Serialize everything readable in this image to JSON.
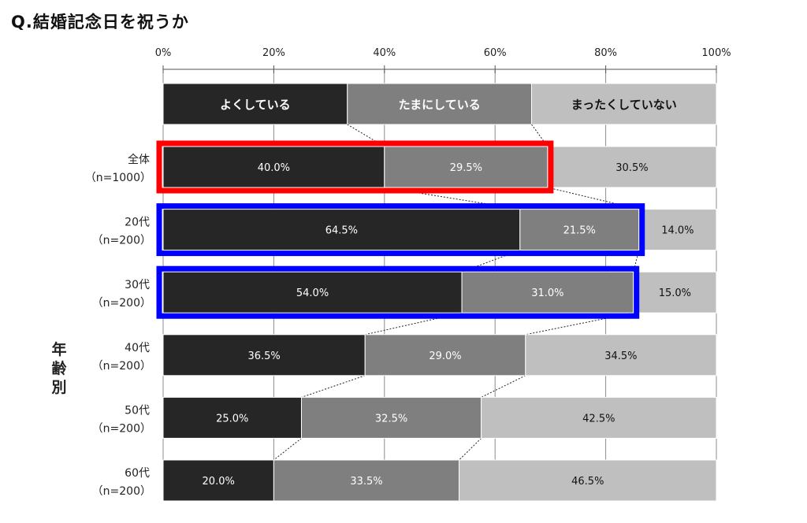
{
  "title": "Q.結婚記念日を祝うか",
  "chart_data": {
    "type": "bar",
    "orientation": "horizontal",
    "stacked": "percent",
    "x_ticks": [
      "0%",
      "20%",
      "40%",
      "60%",
      "80%",
      "100%"
    ],
    "xlim": [
      0,
      100
    ],
    "legend": {
      "placement": "top",
      "entries": [
        "よくしている",
        "たまにしている",
        "まったくしていない"
      ]
    },
    "ylabel": "年齢別",
    "categories": [
      {
        "name": "全体",
        "n": "（n=1000）"
      },
      {
        "name": "20代",
        "n": "（n=200）"
      },
      {
        "name": "30代",
        "n": "（n=200）"
      },
      {
        "name": "40代",
        "n": "（n=200）"
      },
      {
        "name": "50代",
        "n": "（n=200）"
      },
      {
        "name": "60代",
        "n": "（n=200）"
      }
    ],
    "series": [
      {
        "name": "よくしている",
        "color": "#262626",
        "values": [
          40.0,
          64.5,
          54.0,
          36.5,
          25.0,
          20.0
        ]
      },
      {
        "name": "たまにしている",
        "color": "#7f7f7f",
        "values": [
          29.5,
          21.5,
          31.0,
          29.0,
          32.5,
          33.5
        ]
      },
      {
        "name": "まったくしていない",
        "color": "#bfbfbf",
        "values": [
          30.5,
          14.0,
          15.0,
          34.5,
          42.5,
          46.5
        ]
      }
    ],
    "data_labels": [
      [
        "40.0%",
        "29.5%",
        "30.5%"
      ],
      [
        "64.5%",
        "21.5%",
        "14.0%"
      ],
      [
        "54.0%",
        "31.0%",
        "15.0%"
      ],
      [
        "36.5%",
        "29.0%",
        "34.5%"
      ],
      [
        "25.0%",
        "32.5%",
        "42.5%"
      ],
      [
        "20.0%",
        "33.5%",
        "46.5%"
      ]
    ],
    "highlights": [
      {
        "row": 0,
        "series": [
          0,
          1
        ],
        "color": "#ff0000"
      },
      {
        "row": 1,
        "series": [
          0,
          1
        ],
        "color": "#0000ff"
      },
      {
        "row": 2,
        "series": [
          0,
          1
        ],
        "color": "#0000ff"
      }
    ],
    "grid": true
  }
}
